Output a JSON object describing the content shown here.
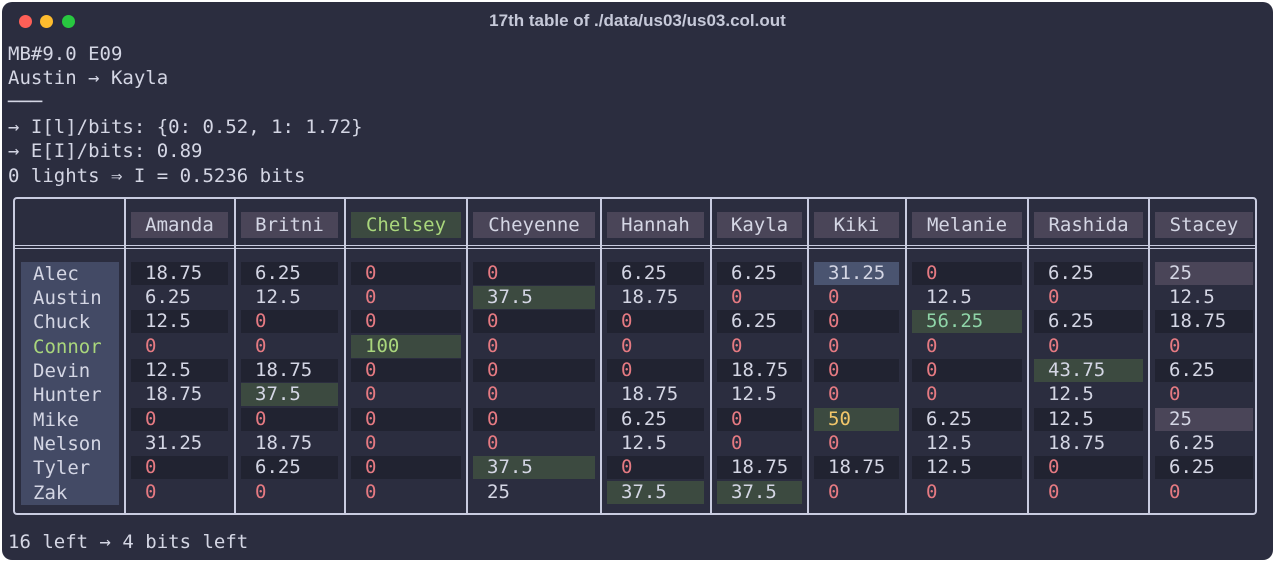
{
  "window": {
    "title": "17th table of ./data/us03/us03.col.out"
  },
  "info_lines": [
    "MB#9.0 E09",
    "Austin → Kayla",
    "───",
    "→ I[l]/bits: {0: 0.52, 1: 1.72}",
    "→ E[I]/bits: 0.89",
    "0 lights ⇒ I = 0.5236 bits"
  ],
  "footer": "16 left → 4 bits left",
  "colors": {
    "background": "#2b2d3f",
    "text": "#d4d6e4",
    "zero": "#e57a82",
    "highlight_name": "#a9d67c",
    "gold": "#f2c66a",
    "mint": "#8fd5a8",
    "green_cell": "#3c4a40",
    "gray_cell": "#212331",
    "blue_cell": "#4a5470",
    "pink_cell": "#4a4558"
  },
  "table": {
    "columns": [
      "Amanda",
      "Britni",
      "Chelsey",
      "Cheyenne",
      "Hannah",
      "Kayla",
      "Kiki",
      "Melanie",
      "Rashida",
      "Stacey"
    ],
    "rows": [
      {
        "name": "Alec",
        "cells": [
          "18.75",
          "6.25",
          "0",
          "0",
          "6.25",
          "6.25",
          "31.25",
          "0",
          "6.25",
          "25"
        ]
      },
      {
        "name": "Austin",
        "cells": [
          "6.25",
          "12.5",
          "0",
          "37.5",
          "18.75",
          "0",
          "0",
          "12.5",
          "0",
          "12.5"
        ]
      },
      {
        "name": "Chuck",
        "cells": [
          "12.5",
          "0",
          "0",
          "0",
          "0",
          "6.25",
          "0",
          "56.25",
          "6.25",
          "18.75"
        ]
      },
      {
        "name": "Connor",
        "cells": [
          "0",
          "0",
          "100",
          "0",
          "0",
          "0",
          "0",
          "0",
          "0",
          "0"
        ]
      },
      {
        "name": "Devin",
        "cells": [
          "12.5",
          "18.75",
          "0",
          "0",
          "0",
          "18.75",
          "0",
          "0",
          "43.75",
          "6.25"
        ]
      },
      {
        "name": "Hunter",
        "cells": [
          "18.75",
          "37.5",
          "0",
          "0",
          "18.75",
          "12.5",
          "0",
          "0",
          "12.5",
          "0"
        ]
      },
      {
        "name": "Mike",
        "cells": [
          "0",
          "0",
          "0",
          "0",
          "6.25",
          "0",
          "50",
          "6.25",
          "12.5",
          "25"
        ]
      },
      {
        "name": "Nelson",
        "cells": [
          "31.25",
          "18.75",
          "0",
          "0",
          "12.5",
          "0",
          "0",
          "12.5",
          "18.75",
          "6.25"
        ]
      },
      {
        "name": "Tyler",
        "cells": [
          "0",
          "6.25",
          "0",
          "37.5",
          "0",
          "18.75",
          "18.75",
          "12.5",
          "0",
          "6.25"
        ]
      },
      {
        "name": "Zak",
        "cells": [
          "0",
          "0",
          "0",
          "25",
          "37.5",
          "37.5",
          "0",
          "0",
          "0",
          "0"
        ]
      }
    ]
  }
}
